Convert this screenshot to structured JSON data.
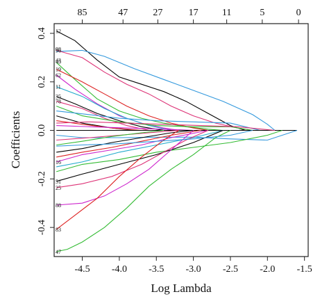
{
  "chart_data": {
    "type": "line",
    "xlabel": "Log Lambda",
    "ylabel": "Coefficients",
    "xlim": [
      -4.88,
      -1.45
    ],
    "ylim": [
      -0.52,
      0.44
    ],
    "x_ticks": [
      -4.5,
      -4.0,
      -3.5,
      -3.0,
      -2.5,
      -2.0,
      -1.5
    ],
    "x_tick_labels": [
      "-4.5",
      "-4.0",
      "-3.5",
      "-3.0",
      "-2.5",
      "-2.0",
      "-1.5"
    ],
    "y_ticks": [
      -0.4,
      -0.2,
      0.0,
      0.2,
      0.4
    ],
    "y_tick_labels": [
      "-0.4",
      "-0.2",
      "0.0",
      "0.2",
      "0.4"
    ],
    "top_axis": {
      "ticks": [
        -4.5,
        -3.95,
        -3.48,
        -3.0,
        -2.55,
        -2.07,
        -1.58
      ],
      "labels": [
        "85",
        "47",
        "27",
        "17",
        "11",
        "5",
        "0"
      ]
    },
    "grid": false,
    "legend": "none",
    "inline_labels": [
      {
        "text": "12",
        "y": 0.41
      },
      {
        "text": "98",
        "y": 0.335
      },
      {
        "text": "96",
        "y": 0.33
      },
      {
        "text": "43",
        "y": 0.29
      },
      {
        "text": "45",
        "y": 0.284
      },
      {
        "text": "19",
        "y": 0.252
      },
      {
        "text": "62",
        "y": 0.228
      },
      {
        "text": "11",
        "y": 0.18
      },
      {
        "text": "35",
        "y": 0.14
      },
      {
        "text": "78",
        "y": 0.12
      },
      {
        "text": "16",
        "y": -0.13
      },
      {
        "text": "51",
        "y": -0.21
      },
      {
        "text": "25",
        "y": -0.236
      },
      {
        "text": "88",
        "y": -0.308
      },
      {
        "text": "83",
        "y": -0.408
      },
      {
        "text": "47",
        "y": -0.5
      }
    ],
    "series": [
      {
        "color": "#000000",
        "x": [
          -4.85,
          -4.6,
          -4.3,
          -4.0,
          -3.7,
          -3.4,
          -3.1,
          -2.8,
          -2.5,
          -2.3
        ],
        "y": [
          0.41,
          0.37,
          0.29,
          0.22,
          0.19,
          0.16,
          0.12,
          0.07,
          0.02,
          0.0
        ]
      },
      {
        "color": "#3399dd",
        "x": [
          -4.85,
          -4.5,
          -4.2,
          -3.8,
          -3.4,
          -3.0,
          -2.6,
          -2.2,
          -2.0,
          -1.9
        ],
        "y": [
          0.325,
          0.33,
          0.305,
          0.255,
          0.21,
          0.165,
          0.12,
          0.065,
          0.025,
          0.0
        ]
      },
      {
        "color": "#dd3377",
        "x": [
          -4.85,
          -4.5,
          -4.2,
          -3.9,
          -3.6,
          -3.3,
          -3.0,
          -2.7,
          -2.4,
          -2.2
        ],
        "y": [
          0.33,
          0.3,
          0.24,
          0.19,
          0.15,
          0.1,
          0.06,
          0.03,
          0.01,
          0.0
        ]
      },
      {
        "color": "#33bb33",
        "x": [
          -4.85,
          -4.6,
          -4.3,
          -4.0,
          -3.7,
          -3.4,
          -3.1,
          -2.8,
          -2.6
        ],
        "y": [
          0.28,
          0.21,
          0.13,
          0.08,
          0.05,
          0.03,
          0.015,
          0.005,
          0.0
        ]
      },
      {
        "color": "#dd2222",
        "x": [
          -4.85,
          -4.5,
          -4.2,
          -3.9,
          -3.6,
          -3.3,
          -3.0,
          -2.8
        ],
        "y": [
          0.252,
          0.2,
          0.15,
          0.1,
          0.06,
          0.03,
          0.01,
          0.0
        ]
      },
      {
        "color": "#cc22cc",
        "x": [
          -4.85,
          -4.6,
          -4.3,
          -4.0,
          -3.7,
          -3.4,
          -3.2
        ],
        "y": [
          0.228,
          0.17,
          0.11,
          0.06,
          0.03,
          0.01,
          0.0
        ]
      },
      {
        "color": "#22aacc",
        "x": [
          -4.85,
          -4.5,
          -4.2,
          -3.9,
          -3.6,
          -3.3
        ],
        "y": [
          0.18,
          0.14,
          0.09,
          0.05,
          0.02,
          0.0
        ]
      },
      {
        "color": "#000000",
        "x": [
          -4.85,
          -4.6,
          -4.3,
          -4.0,
          -3.7,
          -3.4
        ],
        "y": [
          0.14,
          0.11,
          0.07,
          0.04,
          0.015,
          0.0
        ]
      },
      {
        "color": "#dd3377",
        "x": [
          -4.85,
          -4.5,
          -4.2,
          -3.9,
          -3.6
        ],
        "y": [
          0.12,
          0.09,
          0.05,
          0.02,
          0.0
        ]
      },
      {
        "color": "#33bb33",
        "x": [
          -4.85,
          -4.5,
          -4.0,
          -3.5,
          -3.0,
          -2.5,
          -2.2
        ],
        "y": [
          0.1,
          0.06,
          0.035,
          0.02,
          0.015,
          0.015,
          0.0
        ]
      },
      {
        "color": "#3399dd",
        "x": [
          -4.85,
          -4.4,
          -4.0,
          -3.5,
          -3.0,
          -2.5,
          -2.1
        ],
        "y": [
          0.08,
          0.065,
          0.05,
          0.04,
          0.035,
          0.03,
          0.0
        ]
      },
      {
        "color": "#000000",
        "x": [
          -4.85,
          -4.5,
          -4.1,
          -3.8
        ],
        "y": [
          0.06,
          0.03,
          0.01,
          0.0
        ]
      },
      {
        "color": "#dd2222",
        "x": [
          -4.85,
          -4.5,
          -4.1,
          -3.7
        ],
        "y": [
          0.04,
          0.025,
          0.01,
          0.0
        ]
      },
      {
        "color": "#cc22cc",
        "x": [
          -4.85,
          -4.4,
          -3.9,
          -3.4,
          -3.0
        ],
        "y": [
          0.02,
          0.015,
          0.01,
          0.005,
          0.0
        ]
      },
      {
        "color": "#000000",
        "x": [
          -4.85,
          -4.0,
          -3.0,
          -2.2,
          -1.8,
          -1.6
        ],
        "y": [
          0.0,
          0.0,
          0.0,
          0.0,
          0.0,
          0.0
        ]
      },
      {
        "color": "#3399dd",
        "x": [
          -4.85,
          -4.5,
          -4.0,
          -3.5,
          -3.0,
          -2.5,
          -2.0,
          -1.6
        ],
        "y": [
          -0.02,
          -0.03,
          -0.03,
          -0.028,
          -0.028,
          -0.035,
          -0.04,
          0.0
        ]
      },
      {
        "color": "#dd3377",
        "x": [
          -4.85,
          -4.4,
          -4.0,
          -3.6,
          -3.2
        ],
        "y": [
          -0.04,
          -0.03,
          -0.02,
          -0.01,
          0.0
        ]
      },
      {
        "color": "#33bb33",
        "x": [
          -4.85,
          -4.5,
          -4.1,
          -3.7,
          -3.4
        ],
        "y": [
          -0.06,
          -0.045,
          -0.025,
          -0.01,
          0.0
        ]
      },
      {
        "color": "#000000",
        "x": [
          -4.85,
          -4.5,
          -4.1,
          -3.7,
          -3.3,
          -3.0
        ],
        "y": [
          -0.09,
          -0.075,
          -0.05,
          -0.03,
          -0.01,
          0.0
        ]
      },
      {
        "color": "#dd2222",
        "x": [
          -4.85,
          -4.5,
          -4.1,
          -3.7,
          -3.3,
          -2.9
        ],
        "y": [
          -0.11,
          -0.09,
          -0.07,
          -0.045,
          -0.02,
          0.0
        ]
      },
      {
        "color": "#cc22cc",
        "x": [
          -4.85,
          -4.5,
          -4.1,
          -3.7,
          -3.3,
          -2.8
        ],
        "y": [
          -0.13,
          -0.1,
          -0.08,
          -0.06,
          -0.03,
          0.0
        ]
      },
      {
        "color": "#22aacc",
        "x": [
          -4.85,
          -4.5,
          -4.0,
          -3.5,
          -3.0,
          -2.6
        ],
        "y": [
          -0.15,
          -0.13,
          -0.09,
          -0.06,
          -0.03,
          0.0
        ]
      },
      {
        "color": "#33bb33",
        "x": [
          -4.85,
          -4.5,
          -4.0,
          -3.5,
          -3.0,
          -2.5,
          -2.0,
          -1.8
        ],
        "y": [
          -0.17,
          -0.14,
          -0.12,
          -0.09,
          -0.07,
          -0.05,
          -0.02,
          0.0
        ]
      },
      {
        "color": "#000000",
        "x": [
          -4.85,
          -4.5,
          -4.0,
          -3.5,
          -3.0,
          -2.6
        ],
        "y": [
          -0.21,
          -0.18,
          -0.14,
          -0.1,
          -0.05,
          0.0
        ]
      },
      {
        "color": "#dd3377",
        "x": [
          -4.85,
          -4.5,
          -4.1,
          -3.7,
          -3.4,
          -3.1,
          -2.8
        ],
        "y": [
          -0.236,
          -0.22,
          -0.19,
          -0.14,
          -0.09,
          -0.04,
          0.0
        ]
      },
      {
        "color": "#cc22cc",
        "x": [
          -4.85,
          -4.5,
          -4.2,
          -3.9,
          -3.6,
          -3.3,
          -3.0
        ],
        "y": [
          -0.308,
          -0.3,
          -0.27,
          -0.22,
          -0.16,
          -0.08,
          0.0
        ]
      },
      {
        "color": "#dd2222",
        "x": [
          -4.85,
          -4.6,
          -4.3,
          -4.0,
          -3.7,
          -3.4,
          -3.2
        ],
        "y": [
          -0.408,
          -0.35,
          -0.28,
          -0.19,
          -0.11,
          -0.04,
          0.0
        ]
      },
      {
        "color": "#33bb33",
        "x": [
          -4.85,
          -4.7,
          -4.5,
          -4.2,
          -3.9,
          -3.6,
          -3.3,
          -3.0,
          -2.7,
          -2.5
        ],
        "y": [
          -0.5,
          -0.49,
          -0.46,
          -0.4,
          -0.32,
          -0.23,
          -0.16,
          -0.1,
          -0.03,
          0.0
        ]
      },
      {
        "color": "#3399dd",
        "x": [
          -4.85,
          -4.5,
          -4.0,
          -3.5,
          -3.0,
          -2.5,
          -2.2
        ],
        "y": [
          -0.065,
          -0.06,
          -0.055,
          -0.045,
          -0.035,
          -0.02,
          0.0
        ]
      },
      {
        "color": "#dd3377",
        "x": [
          -4.85,
          -4.4,
          -3.9,
          -3.4,
          -2.9,
          -2.4,
          -1.9
        ],
        "y": [
          0.03,
          0.035,
          0.03,
          0.025,
          0.02,
          0.015,
          0.0
        ]
      }
    ]
  }
}
